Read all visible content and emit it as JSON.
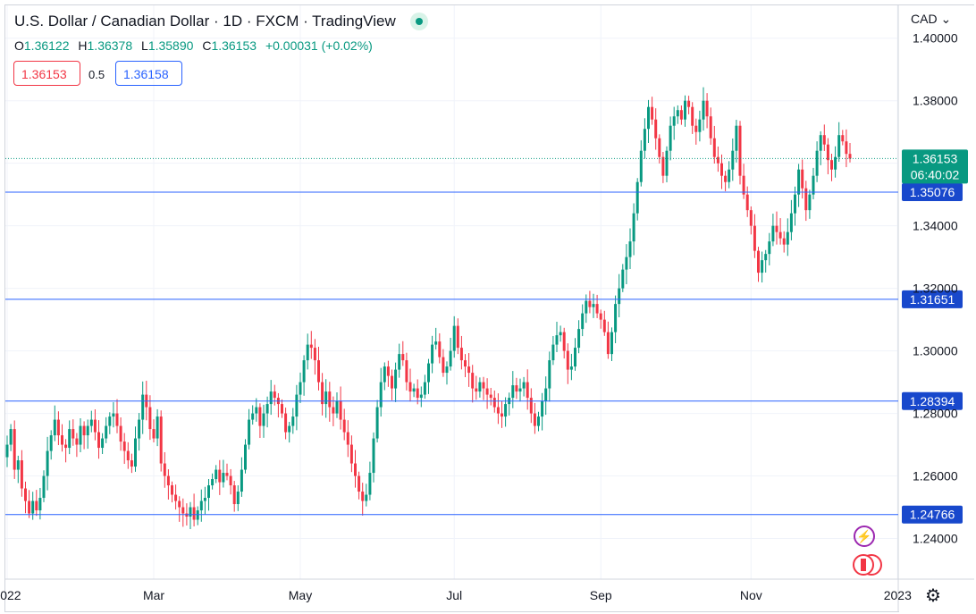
{
  "header": {
    "title": "U.S. Dollar / Canadian Dollar · 1D · FXCM · TradingView",
    "ohlc": [
      {
        "key": "O",
        "value": "1.36122"
      },
      {
        "key": "H",
        "value": "1.36378"
      },
      {
        "key": "L",
        "value": "1.35890"
      },
      {
        "key": "C",
        "value": "1.36153"
      }
    ],
    "change": "+0.00031 (+0.02%)",
    "sell_price": "1.36153",
    "spread": "0.5",
    "buy_price": "1.36158",
    "currency": "CAD",
    "currency_chevron": "⌄"
  },
  "colors": {
    "up": "#089981",
    "down": "#f23645",
    "level_line": "#2962ff",
    "level_tag": "#1848cc",
    "grid": "#f0f3fa",
    "current_tag": "#089981"
  },
  "icons": {
    "settings": "gear-icon",
    "events": "lightning-icon",
    "economic": "canada-flag-icon",
    "live": "live-dot-icon"
  },
  "chart_data": {
    "type": "candlestick",
    "ylim": [
      1.227,
      1.4105
    ],
    "y_ticks": [
      {
        "value": 1.24,
        "label": "1.24000"
      },
      {
        "value": 1.26,
        "label": "1.26000"
      },
      {
        "value": 1.28,
        "label": "1.28000"
      },
      {
        "value": 1.3,
        "label": "1.30000"
      },
      {
        "value": 1.32,
        "label": "1.32000"
      },
      {
        "value": 1.34,
        "label": "1.34000"
      },
      {
        "value": 1.36,
        "label": "1.36000"
      },
      {
        "value": 1.38,
        "label": "1.38000"
      },
      {
        "value": 1.4,
        "label": "1.40000"
      }
    ],
    "x_ticks": [
      {
        "index": 0,
        "label": "2022"
      },
      {
        "index": 40,
        "label": "Mar"
      },
      {
        "index": 80,
        "label": "May"
      },
      {
        "index": 122,
        "label": "Jul"
      },
      {
        "index": 162,
        "label": "Sep"
      },
      {
        "index": 203,
        "label": "Nov"
      },
      {
        "index": 243,
        "label": "2023"
      }
    ],
    "horizontal_levels": [
      {
        "value": 1.35076,
        "label": "1.35076"
      },
      {
        "value": 1.31651,
        "label": "1.31651"
      },
      {
        "value": 1.28394,
        "label": "1.28394"
      },
      {
        "value": 1.24766,
        "label": "1.24766"
      }
    ],
    "last_price": {
      "value": 1.36153,
      "label": "1.36153",
      "countdown": "06:40:02"
    },
    "closes": [
      1.27,
      1.275,
      1.262,
      1.265,
      1.256,
      1.252,
      1.248,
      1.252,
      1.249,
      1.253,
      1.26,
      1.268,
      1.273,
      1.278,
      1.273,
      1.27,
      1.269,
      1.275,
      1.272,
      1.27,
      1.276,
      1.273,
      1.276,
      1.278,
      1.274,
      1.269,
      1.272,
      1.276,
      1.279,
      1.28,
      1.276,
      1.271,
      1.268,
      1.265,
      1.263,
      1.272,
      1.278,
      1.286,
      1.282,
      1.275,
      1.272,
      1.279,
      1.264,
      1.26,
      1.257,
      1.254,
      1.252,
      1.25,
      1.248,
      1.247,
      1.25,
      1.246,
      1.249,
      1.252,
      1.253,
      1.257,
      1.259,
      1.262,
      1.258,
      1.261,
      1.26,
      1.257,
      1.251,
      1.255,
      1.262,
      1.27,
      1.278,
      1.28,
      1.282,
      1.276,
      1.28,
      1.283,
      1.287,
      1.285,
      1.283,
      1.28,
      1.274,
      1.276,
      1.279,
      1.286,
      1.29,
      1.297,
      1.302,
      1.301,
      1.297,
      1.29,
      1.283,
      1.287,
      1.282,
      1.28,
      1.284,
      1.278,
      1.274,
      1.27,
      1.264,
      1.26,
      1.255,
      1.252,
      1.254,
      1.261,
      1.272,
      1.282,
      1.29,
      1.295,
      1.292,
      1.288,
      1.294,
      1.299,
      1.297,
      1.29,
      1.287,
      1.288,
      1.285,
      1.286,
      1.29,
      1.296,
      1.302,
      1.303,
      1.298,
      1.293,
      1.295,
      1.3,
      1.308,
      1.301,
      1.297,
      1.295,
      1.293,
      1.288,
      1.287,
      1.29,
      1.288,
      1.286,
      1.285,
      1.282,
      1.28,
      1.279,
      1.283,
      1.285,
      1.289,
      1.287,
      1.288,
      1.29,
      1.285,
      1.28,
      1.276,
      1.279,
      1.284,
      1.288,
      1.297,
      1.302,
      1.305,
      1.306,
      1.3,
      1.294,
      1.295,
      1.301,
      1.307,
      1.312,
      1.316,
      1.314,
      1.315,
      1.312,
      1.31,
      1.306,
      1.299,
      1.306,
      1.315,
      1.32,
      1.326,
      1.33,
      1.335,
      1.344,
      1.354,
      1.364,
      1.371,
      1.378,
      1.374,
      1.368,
      1.362,
      1.356,
      1.364,
      1.372,
      1.375,
      1.377,
      1.374,
      1.38,
      1.378,
      1.372,
      1.37,
      1.374,
      1.38,
      1.375,
      1.368,
      1.362,
      1.36,
      1.356,
      1.354,
      1.358,
      1.364,
      1.372,
      1.356,
      1.35,
      1.345,
      1.34,
      1.332,
      1.325,
      1.329,
      1.331,
      1.335,
      1.34,
      1.338,
      1.336,
      1.334,
      1.338,
      1.344,
      1.35,
      1.358,
      1.352,
      1.345,
      1.35,
      1.356,
      1.364,
      1.369,
      1.366,
      1.361,
      1.358,
      1.362,
      1.369,
      1.367,
      1.363,
      1.3615
    ]
  }
}
